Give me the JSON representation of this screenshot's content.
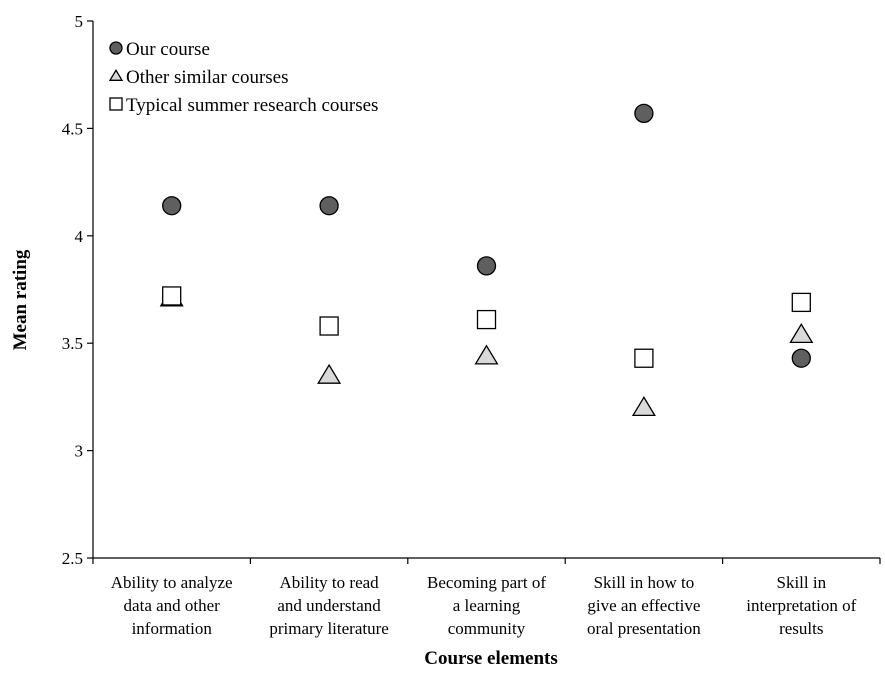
{
  "chart_data": {
    "type": "scatter",
    "title": "",
    "xlabel": "Course elements",
    "ylabel": "Mean rating",
    "ylim": [
      2.5,
      5
    ],
    "yticks": [
      "2.5",
      "3",
      "3.5",
      "4",
      "4.5",
      "5"
    ],
    "grid": false,
    "legend_position": "top-left",
    "categories": [
      [
        "Ability to analyze",
        "data and other",
        "information"
      ],
      [
        "Ability to read",
        "and understand",
        "primary literature"
      ],
      [
        "Becoming part of",
        "a learning",
        "community"
      ],
      [
        "Skill in how to",
        "give an effective",
        "oral presentation"
      ],
      [
        "Skill in",
        "interpretation of",
        "results"
      ]
    ],
    "series": [
      {
        "name": "Our course",
        "marker": "circle",
        "color": "#5f5f5f",
        "values": [
          4.14,
          4.14,
          3.86,
          4.57,
          3.43
        ]
      },
      {
        "name": "Other similar courses",
        "marker": "triangle",
        "color": "#d9d9d9",
        "values": [
          3.71,
          3.35,
          3.44,
          3.2,
          3.54
        ]
      },
      {
        "name": "Typical summer research courses",
        "marker": "square",
        "color": "#ffffff",
        "values": [
          3.72,
          3.58,
          3.61,
          3.43,
          3.69
        ]
      }
    ]
  }
}
